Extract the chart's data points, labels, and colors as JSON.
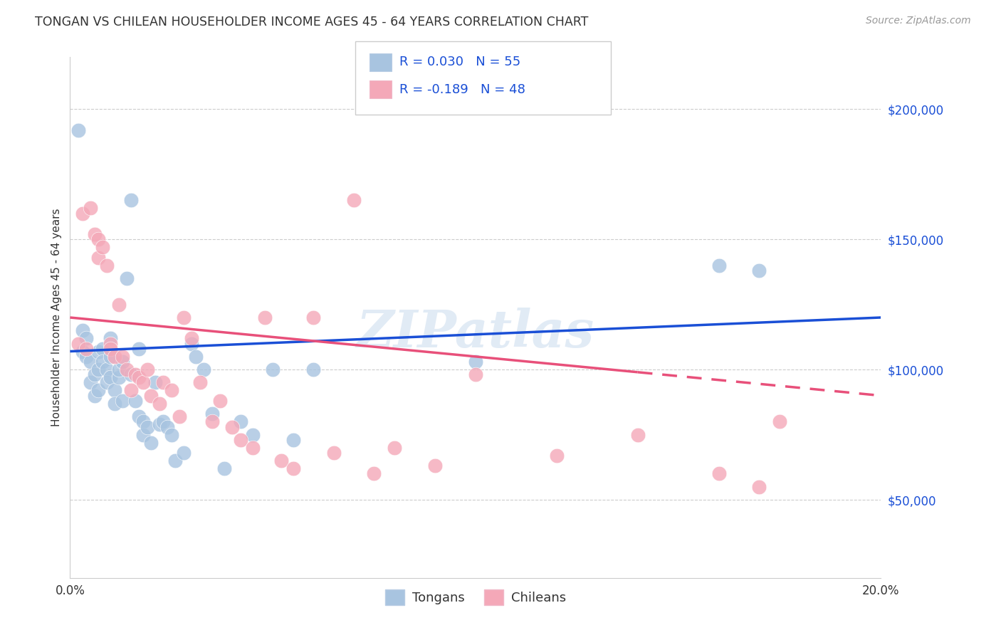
{
  "title": "TONGAN VS CHILEAN HOUSEHOLDER INCOME AGES 45 - 64 YEARS CORRELATION CHART",
  "source": "Source: ZipAtlas.com",
  "ylabel": "Householder Income Ages 45 - 64 years",
  "xlim": [
    0.0,
    0.2
  ],
  "ylim": [
    20000,
    220000
  ],
  "yticks": [
    50000,
    100000,
    150000,
    200000
  ],
  "ytick_labels": [
    "$50,000",
    "$100,000",
    "$150,000",
    "$200,000"
  ],
  "xticks": [
    0.0,
    0.05,
    0.1,
    0.15,
    0.2
  ],
  "xtick_labels": [
    "0.0%",
    "",
    "",
    "",
    "20.0%"
  ],
  "bg_color": "#ffffff",
  "grid_color": "#cccccc",
  "tongan_color": "#a8c4e0",
  "chilean_color": "#f4a8b8",
  "tongan_line_color": "#1a4fd6",
  "chilean_line_color": "#e8507a",
  "r_tongan": 0.03,
  "n_tongan": 55,
  "r_chilean": -0.189,
  "n_chilean": 48,
  "watermark": "ZIPatlas",
  "tongan_x": [
    0.002,
    0.003,
    0.003,
    0.004,
    0.004,
    0.005,
    0.005,
    0.006,
    0.006,
    0.007,
    0.007,
    0.007,
    0.008,
    0.008,
    0.009,
    0.009,
    0.01,
    0.01,
    0.01,
    0.011,
    0.011,
    0.012,
    0.012,
    0.013,
    0.013,
    0.014,
    0.015,
    0.015,
    0.016,
    0.017,
    0.017,
    0.018,
    0.018,
    0.019,
    0.02,
    0.021,
    0.022,
    0.023,
    0.024,
    0.025,
    0.026,
    0.028,
    0.03,
    0.031,
    0.033,
    0.035,
    0.038,
    0.042,
    0.045,
    0.05,
    0.055,
    0.06,
    0.1,
    0.16,
    0.17
  ],
  "tongan_y": [
    192000,
    107000,
    115000,
    105000,
    112000,
    95000,
    103000,
    90000,
    98000,
    107000,
    92000,
    100000,
    108000,
    103000,
    100000,
    95000,
    97000,
    105000,
    112000,
    92000,
    87000,
    97000,
    100000,
    103000,
    88000,
    135000,
    165000,
    98000,
    88000,
    82000,
    108000,
    80000,
    75000,
    78000,
    72000,
    95000,
    79000,
    80000,
    78000,
    75000,
    65000,
    68000,
    110000,
    105000,
    100000,
    83000,
    62000,
    80000,
    75000,
    100000,
    73000,
    100000,
    103000,
    140000,
    138000
  ],
  "chilean_x": [
    0.002,
    0.003,
    0.004,
    0.005,
    0.006,
    0.007,
    0.007,
    0.008,
    0.009,
    0.01,
    0.01,
    0.011,
    0.012,
    0.013,
    0.014,
    0.015,
    0.016,
    0.017,
    0.018,
    0.019,
    0.02,
    0.022,
    0.023,
    0.025,
    0.027,
    0.028,
    0.03,
    0.032,
    0.035,
    0.037,
    0.04,
    0.042,
    0.045,
    0.048,
    0.052,
    0.055,
    0.06,
    0.065,
    0.07,
    0.075,
    0.08,
    0.09,
    0.1,
    0.12,
    0.14,
    0.16,
    0.17,
    0.175
  ],
  "chilean_y": [
    110000,
    160000,
    108000,
    162000,
    152000,
    150000,
    143000,
    147000,
    140000,
    110000,
    108000,
    105000,
    125000,
    105000,
    100000,
    92000,
    98000,
    97000,
    95000,
    100000,
    90000,
    87000,
    95000,
    92000,
    82000,
    120000,
    112000,
    95000,
    80000,
    88000,
    78000,
    73000,
    70000,
    120000,
    65000,
    62000,
    120000,
    68000,
    165000,
    60000,
    70000,
    63000,
    98000,
    67000,
    75000,
    60000,
    55000,
    80000
  ]
}
